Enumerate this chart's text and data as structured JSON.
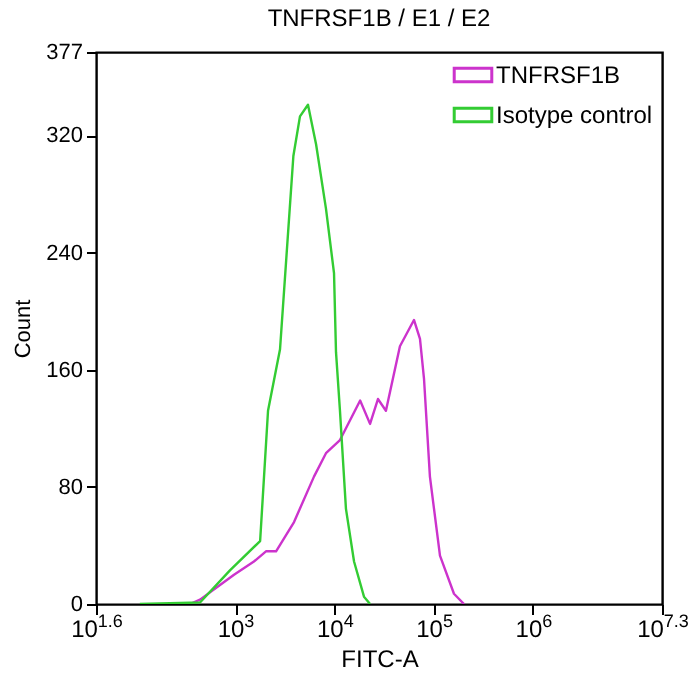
{
  "chart_data": {
    "type": "line",
    "title": "TNFRSF1B / E1 / E2",
    "xlabel": "FITC-A",
    "ylabel": "Count",
    "log": "x",
    "xlim": [
      39.81,
      19952623
    ],
    "xticks": [
      {
        "value": 39.81,
        "label": "10$^{1.6}$"
      },
      {
        "value": 1000,
        "label": "10$^{3}$"
      },
      {
        "value": 10000,
        "label": "10$^{4}$"
      },
      {
        "value": 100000,
        "label": "10$^{5}$"
      },
      {
        "value": 1000000,
        "label": "10$^{6}$"
      },
      {
        "value": 19952623,
        "label": "10$^{7.3}$"
      }
    ],
    "ylim": [
      0,
      377
    ],
    "yticks": [
      0,
      80,
      160,
      240,
      320,
      377
    ],
    "grid": false,
    "legend": "top right",
    "series": [
      {
        "name": "TNFRSF1B",
        "color": "#cc33cc",
        "x": [
          352,
          444,
          706,
          977,
          1550,
          2050,
          2590,
          3930,
          6240,
          8240,
          11400,
          18200,
          22900,
          27500,
          33100,
          45800,
          63400,
          72900,
          80000,
          91800,
          115900,
          160300,
          202300
        ],
        "values": [
          0,
          3,
          13,
          20,
          29,
          36,
          36,
          56,
          87,
          103,
          112,
          139,
          123,
          140,
          132,
          176,
          194,
          181,
          154,
          87,
          33,
          7,
          0
        ]
      },
      {
        "name": "Isotype control",
        "color": "#33cc33",
        "x": [
          110,
          444,
          889,
          1790,
          2150,
          2840,
          3870,
          4510,
          5430,
          6550,
          8240,
          9930,
          10400,
          11400,
          13100,
          15800,
          19900,
          22900
        ],
        "values": [
          0,
          1,
          23,
          43,
          132,
          174,
          306,
          333,
          341,
          314,
          270,
          226,
          172,
          132,
          65,
          29,
          5,
          0
        ]
      }
    ]
  }
}
